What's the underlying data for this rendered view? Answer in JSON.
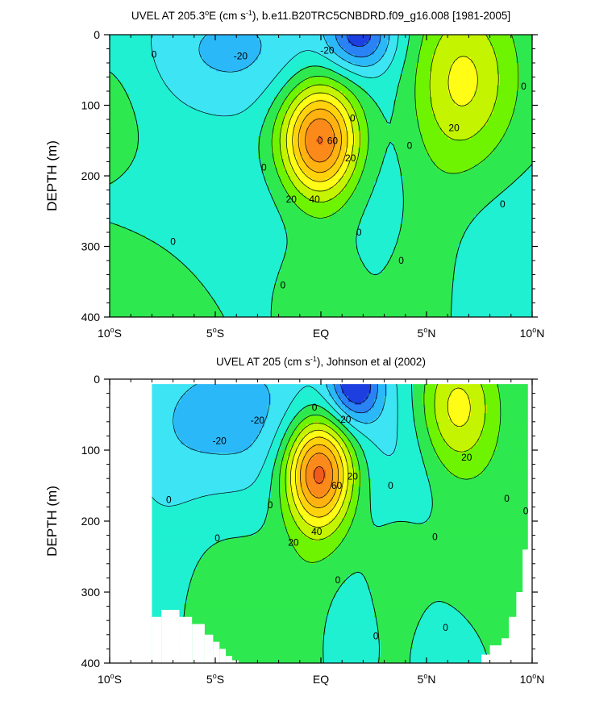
{
  "chart_data": [
    {
      "type": "contour",
      "title_parts": [
        "UVEL AT 205.3",
        "o",
        "E (cm s",
        "-1",
        "), b.e11.B20TRC5CNBDRD.f09_g16.008 [1981-2005]"
      ],
      "xlabel": "",
      "ylabel": "DEPTH (m)",
      "xlim": [
        -10,
        10
      ],
      "ylim": [
        400,
        0
      ],
      "x_ticks": [
        -10,
        -5,
        0,
        5,
        10
      ],
      "x_tick_labels": [
        [
          "10",
          "o",
          "S"
        ],
        [
          "5",
          "o",
          "S"
        ],
        [
          "EQ"
        ],
        [
          "5",
          "o",
          "N"
        ],
        [
          "10",
          "o",
          "N"
        ]
      ],
      "y_ticks": [
        0,
        100,
        200,
        300,
        400
      ],
      "y_tick_labels": [
        "0",
        "100",
        "200",
        "300",
        "400"
      ],
      "contour_interval": 10,
      "features": [
        {
          "kind": "eastward_jet",
          "lat": -0.05,
          "depth": 148,
          "peak": 75
        },
        {
          "kind": "eastward_current",
          "lat": 6.7,
          "depth": 65,
          "peak": 33
        },
        {
          "kind": "westward_current",
          "lat": 1.8,
          "depth": 0,
          "peak": -38
        }
      ],
      "contour_labels": [
        {
          "text": "0",
          "lat": -7.9,
          "depth": 28
        },
        {
          "text": "-20",
          "lat": -3.8,
          "depth": 30
        },
        {
          "text": "-20",
          "lat": 0.3,
          "depth": 22
        },
        {
          "text": "0",
          "lat": 9.6,
          "depth": 73
        },
        {
          "text": "20",
          "lat": 6.3,
          "depth": 132
        },
        {
          "text": "0",
          "lat": 1.5,
          "depth": 118
        },
        {
          "text": "60",
          "lat": 0.55,
          "depth": 150
        },
        {
          "text": "20",
          "lat": 1.4,
          "depth": 175
        },
        {
          "text": "0",
          "lat": 4.2,
          "depth": 157
        },
        {
          "text": "0",
          "lat": -2.7,
          "depth": 188
        },
        {
          "text": "40",
          "lat": -0.3,
          "depth": 233
        },
        {
          "text": "20",
          "lat": -1.4,
          "depth": 233
        },
        {
          "text": "0",
          "lat": 8.6,
          "depth": 240
        },
        {
          "text": "0",
          "lat": -7.0,
          "depth": 293
        },
        {
          "text": "0",
          "lat": 1.8,
          "depth": 280
        },
        {
          "text": "0",
          "lat": 3.8,
          "depth": 320
        },
        {
          "text": "0",
          "lat": -1.8,
          "depth": 355
        }
      ]
    },
    {
      "type": "contour",
      "title_parts": [
        "UVEL AT 205 (cm s",
        "-1",
        "), Johnson et al (2002)"
      ],
      "xlabel": "",
      "ylabel": "DEPTH (m)",
      "xlim": [
        -10,
        10
      ],
      "ylim": [
        400,
        0
      ],
      "x_ticks": [
        -10,
        -5,
        0,
        5,
        10
      ],
      "x_tick_labels": [
        [
          "10",
          "o",
          "S"
        ],
        [
          "5",
          "o",
          "S"
        ],
        [
          "EQ"
        ],
        [
          "5",
          "o",
          "N"
        ],
        [
          "10",
          "o",
          "N"
        ]
      ],
      "y_ticks": [
        0,
        100,
        200,
        300,
        400
      ],
      "y_tick_labels": [
        "0",
        "100",
        "200",
        "300",
        "400"
      ],
      "contour_interval": 10,
      "data_extent_lat": [
        -8,
        9.6
      ],
      "features": [
        {
          "kind": "eastward_jet",
          "lat": -0.1,
          "depth": 130,
          "peak": 80
        },
        {
          "kind": "eastward_current",
          "lat": 6.4,
          "depth": 40,
          "peak": 35
        },
        {
          "kind": "westward_current",
          "lat": 1.6,
          "depth": 5,
          "peak": -45
        }
      ],
      "contour_labels": [
        {
          "text": "-20",
          "lat": -4.8,
          "depth": 87
        },
        {
          "text": "-20",
          "lat": -3.0,
          "depth": 58
        },
        {
          "text": "0",
          "lat": -0.3,
          "depth": 40
        },
        {
          "text": "-20",
          "lat": 1.1,
          "depth": 57
        },
        {
          "text": "0",
          "lat": -7.2,
          "depth": 170
        },
        {
          "text": "20",
          "lat": 6.9,
          "depth": 110
        },
        {
          "text": "0",
          "lat": 3.3,
          "depth": 150
        },
        {
          "text": "60",
          "lat": 0.75,
          "depth": 150
        },
        {
          "text": "20",
          "lat": 1.5,
          "depth": 137
        },
        {
          "text": "0",
          "lat": -2.4,
          "depth": 177
        },
        {
          "text": "0",
          "lat": 8.8,
          "depth": 168
        },
        {
          "text": "0",
          "lat": 9.7,
          "depth": 186
        },
        {
          "text": "20",
          "lat": -1.3,
          "depth": 230
        },
        {
          "text": "40",
          "lat": -0.2,
          "depth": 215
        },
        {
          "text": "0",
          "lat": -4.9,
          "depth": 224
        },
        {
          "text": "0",
          "lat": 5.4,
          "depth": 222
        },
        {
          "text": "0",
          "lat": 0.8,
          "depth": 283
        },
        {
          "text": "0",
          "lat": 5.9,
          "depth": 350
        },
        {
          "text": "0",
          "lat": 2.6,
          "depth": 362
        }
      ]
    }
  ],
  "colors": [
    "#1d3fe0",
    "#2a83f5",
    "#2bb8f8",
    "#3de4f4",
    "#1ff0d2",
    "#2ee84f",
    "#6ef400",
    "#c4f400",
    "#fffc16",
    "#ffd30c",
    "#ffb210",
    "#fb8a1a",
    "#f05a1d",
    "#e41a10"
  ]
}
